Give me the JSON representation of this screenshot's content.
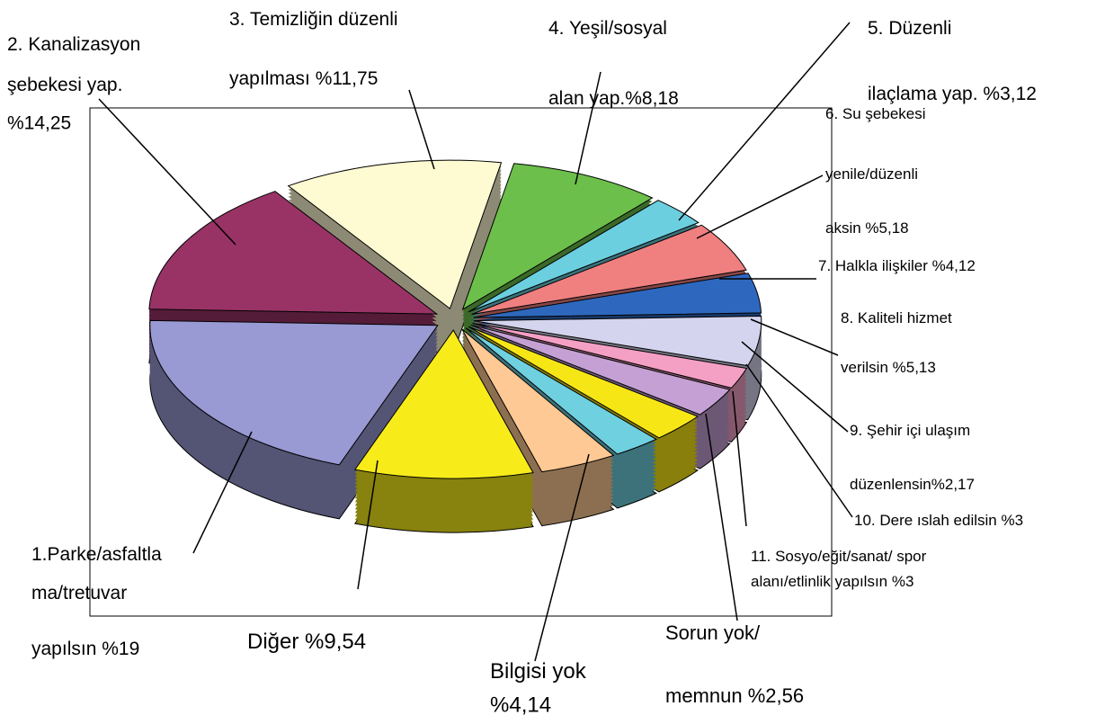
{
  "chart_data": {
    "type": "pie",
    "labels": [
      [
        "1.Parke/asfaltla",
        "ma/tretuvar",
        "yapılsın "
      ],
      [
        "2. Kanalizasyon",
        "şebekesi yap."
      ],
      [
        "3. Temizliğin düzenli",
        "yapılması "
      ],
      [
        "4. Yeşil/sosyal",
        "alan yap."
      ],
      [
        "5. Düzenli",
        "ilaçlama yap. "
      ],
      [
        "6. Su şebekesi",
        "yenile/düzenli",
        "aksin "
      ],
      [
        "7. Halkla ilişkiler "
      ],
      [
        "8. Kaliteli hizmet",
        "verilsin "
      ],
      [
        "9. Şehir içi ulaşım",
        "düzenlensin"
      ],
      [
        "10. Dere ıslah edilsin "
      ],
      [
        "11. Sosyo/eğit/sanat/ spor",
        "alanı/etlinlik yapılsın "
      ],
      [
        "Sorun yok/",
        "memnun "
      ],
      [
        "Bilgisi yok"
      ],
      [
        "Diğer "
      ]
    ],
    "values": [
      19,
      14.25,
      11.75,
      8.18,
      3.12,
      5.18,
      4.12,
      5.13,
      2.17,
      3,
      3,
      2.56,
      4.14,
      9.54
    ],
    "value_labels": [
      "%19",
      "%14,25",
      "%11,75",
      "%8,18",
      "%3,12",
      "%5,18",
      "%4,12",
      "%5,13",
      "%2,17",
      "%3",
      "%3",
      "%2,56",
      "%4,14",
      "%9,54"
    ],
    "colors": [
      "#9999d4",
      "#993366",
      "#fefad2",
      "#6cbf4a",
      "#6ccfe0",
      "#f08080",
      "#2e68be",
      "#d4d4ee",
      "#f4a0c4",
      "#c4a0d4",
      "#f7e616",
      "#6fd0e0",
      "#fec994",
      "#f7ec1a"
    ]
  }
}
